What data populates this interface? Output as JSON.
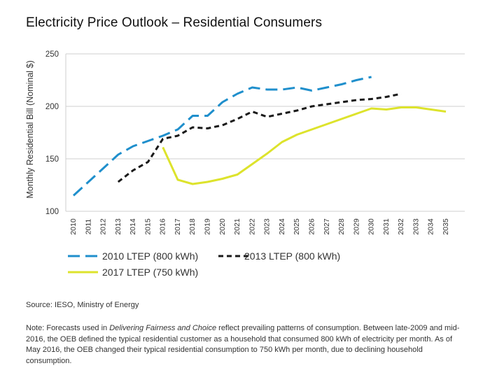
{
  "chart_data": {
    "type": "line",
    "title": "Electricity Price Outlook – Residential Consumers",
    "xlabel": "",
    "ylabel": "Monthly Residential Bill (Nominal $)",
    "ylim": [
      100,
      250
    ],
    "yticks": [
      100,
      150,
      200,
      250
    ],
    "categories": [
      "2010",
      "2011",
      "2012",
      "2013",
      "2014",
      "2015",
      "2016",
      "2017",
      "2018",
      "2019",
      "2020",
      "2021",
      "2022",
      "2023",
      "2024",
      "2025",
      "2026",
      "2027",
      "2028",
      "2029",
      "2030",
      "2031",
      "2032",
      "2033",
      "2034",
      "2035"
    ],
    "grid": true,
    "legend_position": "bottom",
    "series": [
      {
        "name": "2010 LTEP (800 kWh)",
        "color": "#1f8fcc",
        "dash": "long",
        "x": [
          2010,
          2011,
          2012,
          2013,
          2014,
          2015,
          2016,
          2017,
          2018,
          2019,
          2020,
          2021,
          2022,
          2023,
          2024,
          2025,
          2026,
          2027,
          2028,
          2029,
          2030
        ],
        "values": [
          115,
          128,
          141,
          154,
          162,
          167,
          172,
          178,
          191,
          191,
          204,
          212,
          218,
          216,
          216,
          218,
          215,
          218,
          221,
          225,
          228
        ]
      },
      {
        "name": "2013 LTEP (800 kWh)",
        "color": "#1a1a1a",
        "dash": "short",
        "x": [
          2013,
          2014,
          2015,
          2016,
          2017,
          2018,
          2019,
          2020,
          2021,
          2022,
          2023,
          2024,
          2025,
          2026,
          2027,
          2028,
          2029,
          2030,
          2031,
          2032
        ],
        "values": [
          128,
          139,
          147,
          169,
          172,
          180,
          179,
          182,
          188,
          195,
          190,
          193,
          196,
          200,
          202,
          204,
          206,
          207,
          209,
          212
        ]
      },
      {
        "name": "2017 LTEP (750 kWh)",
        "color": "#dde32c",
        "dash": "solid",
        "x": [
          2016,
          2017,
          2018,
          2019,
          2020,
          2021,
          2022,
          2023,
          2024,
          2025,
          2026,
          2027,
          2028,
          2029,
          2030,
          2031,
          2032,
          2033,
          2034,
          2035
        ],
        "values": [
          161,
          130,
          126,
          128,
          131,
          135,
          145,
          155,
          166,
          173,
          178,
          183,
          188,
          193,
          198,
          197,
          199,
          199,
          197,
          195
        ]
      }
    ]
  },
  "source_text": "Source: IESO, Ministry of Energy",
  "note": {
    "prefix": "Note: Forecasts used in ",
    "italic": "Delivering Fairness and Choice",
    "rest": " reflect prevailing patterns of consumption. Between late-2009 and mid-2016, the OEB defined the typical residential customer as a household that consumed 800 kWh of electricity per month. As of May 2016, the OEB changed their typical residential consumption to 750 kWh per month, due to declining household consumption."
  }
}
